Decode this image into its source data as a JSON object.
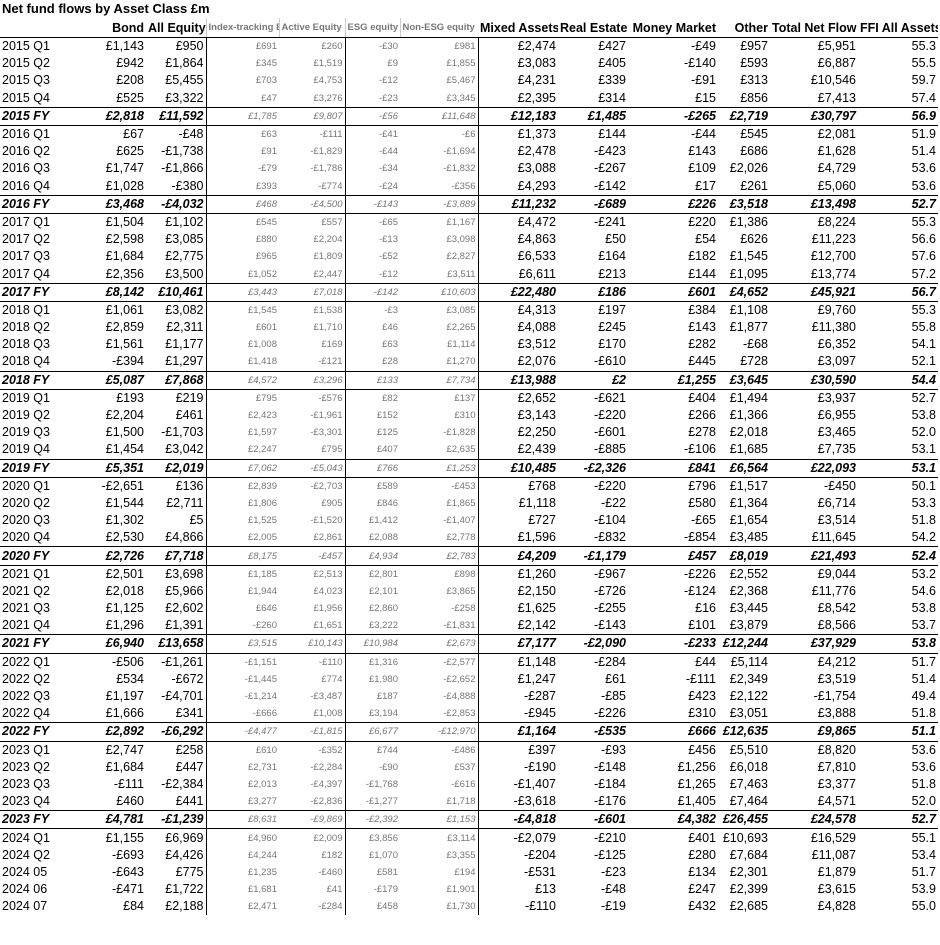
{
  "title": "Net fund flows by Asset Class £m",
  "columns": [
    "",
    "Bond",
    "All Equity",
    "Index-tracking Equity",
    "Active Equity",
    "ESG equity",
    "Non-ESG equity",
    "Mixed Assets",
    "Real Estate",
    "Money Market",
    "Other",
    "Total Net Flow",
    "FFI All Assets"
  ],
  "rows": [
    [
      "2015 Q1",
      "£1,143",
      "£950",
      "£691",
      "£260",
      "-£30",
      "£981",
      "£2,474",
      "£427",
      "-£49",
      "£957",
      "£5,951",
      "55.3"
    ],
    [
      "2015 Q2",
      "£942",
      "£1,864",
      "£345",
      "£1,519",
      "£9",
      "£1,855",
      "£3,083",
      "£405",
      "-£140",
      "£593",
      "£6,887",
      "55.5"
    ],
    [
      "2015 Q3",
      "£208",
      "£5,455",
      "£703",
      "£4,753",
      "-£12",
      "£5,467",
      "£4,231",
      "£339",
      "-£91",
      "£313",
      "£10,546",
      "59.7"
    ],
    [
      "2015 Q4",
      "£525",
      "£3,322",
      "£47",
      "£3,276",
      "-£23",
      "£3,345",
      "£2,395",
      "£314",
      "£15",
      "£856",
      "£7,413",
      "57.4"
    ],
    [
      "2015 FY",
      "£2,818",
      "£11,592",
      "£1,785",
      "£9,807",
      "-£56",
      "£11,648",
      "£12,183",
      "£1,485",
      "-£265",
      "£2,719",
      "£30,797",
      "56.9"
    ],
    [
      "2016 Q1",
      "£67",
      "-£48",
      "£63",
      "-£111",
      "-£41",
      "-£6",
      "£1,373",
      "£144",
      "-£44",
      "£545",
      "£2,081",
      "51.9"
    ],
    [
      "2016 Q2",
      "£625",
      "-£1,738",
      "£91",
      "-£1,829",
      "-£44",
      "-£1,694",
      "£2,478",
      "-£423",
      "£143",
      "£686",
      "£1,628",
      "51.4"
    ],
    [
      "2016 Q3",
      "£1,747",
      "-£1,866",
      "-£79",
      "-£1,786",
      "-£34",
      "-£1,832",
      "£3,088",
      "-£267",
      "£109",
      "£2,026",
      "£4,729",
      "53.6"
    ],
    [
      "2016 Q4",
      "£1,028",
      "-£380",
      "£393",
      "-£774",
      "-£24",
      "-£356",
      "£4,293",
      "-£142",
      "£17",
      "£261",
      "£5,060",
      "53.6"
    ],
    [
      "2016 FY",
      "£3,468",
      "-£4,032",
      "£468",
      "-£4,500",
      "-£143",
      "-£3,889",
      "£11,232",
      "-£689",
      "£226",
      "£3,518",
      "£13,498",
      "52.7"
    ],
    [
      "2017 Q1",
      "£1,504",
      "£1,102",
      "£545",
      "£557",
      "-£65",
      "£1,167",
      "£4,472",
      "-£241",
      "£220",
      "£1,386",
      "£8,224",
      "55.3"
    ],
    [
      "2017 Q2",
      "£2,598",
      "£3,085",
      "£880",
      "£2,204",
      "-£13",
      "£3,098",
      "£4,863",
      "£50",
      "£54",
      "£626",
      "£11,223",
      "56.6"
    ],
    [
      "2017 Q3",
      "£1,684",
      "£2,775",
      "£965",
      "£1,809",
      "-£52",
      "£2,827",
      "£6,533",
      "£164",
      "£182",
      "£1,545",
      "£12,700",
      "57.6"
    ],
    [
      "2017 Q4",
      "£2,356",
      "£3,500",
      "£1,052",
      "£2,447",
      "-£12",
      "£3,511",
      "£6,611",
      "£213",
      "£144",
      "£1,095",
      "£13,774",
      "57.2"
    ],
    [
      "2017 FY",
      "£8,142",
      "£10,461",
      "£3,443",
      "£7,018",
      "-£142",
      "£10,603",
      "£22,480",
      "£186",
      "£601",
      "£4,652",
      "£45,921",
      "56.7"
    ],
    [
      "2018 Q1",
      "£1,061",
      "£3,082",
      "£1,545",
      "£1,538",
      "-£3",
      "£3,085",
      "£4,313",
      "£197",
      "£384",
      "£1,108",
      "£9,760",
      "55.3"
    ],
    [
      "2018 Q2",
      "£2,859",
      "£2,311",
      "£601",
      "£1,710",
      "£46",
      "£2,265",
      "£4,088",
      "£245",
      "£143",
      "£1,877",
      "£11,380",
      "55.8"
    ],
    [
      "2018 Q3",
      "£1,561",
      "£1,177",
      "£1,008",
      "£169",
      "£63",
      "£1,114",
      "£3,512",
      "£170",
      "£282",
      "-£68",
      "£6,352",
      "54.1"
    ],
    [
      "2018 Q4",
      "-£394",
      "£1,297",
      "£1,418",
      "-£121",
      "£28",
      "£1,270",
      "£2,076",
      "-£610",
      "£445",
      "£728",
      "£3,097",
      "52.1"
    ],
    [
      "2018 FY",
      "£5,087",
      "£7,868",
      "£4,572",
      "£3,296",
      "£133",
      "£7,734",
      "£13,988",
      "£2",
      "£1,255",
      "£3,645",
      "£30,590",
      "54.4"
    ],
    [
      "2019 Q1",
      "£193",
      "£219",
      "£795",
      "-£576",
      "£82",
      "£137",
      "£2,652",
      "-£621",
      "£404",
      "£1,494",
      "£3,937",
      "52.7"
    ],
    [
      "2019 Q2",
      "£2,204",
      "£461",
      "£2,423",
      "-£1,961",
      "£152",
      "£310",
      "£3,143",
      "-£220",
      "£266",
      "£1,366",
      "£6,955",
      "53.8"
    ],
    [
      "2019 Q3",
      "£1,500",
      "-£1,703",
      "£1,597",
      "-£3,301",
      "£125",
      "-£1,828",
      "£2,250",
      "-£601",
      "£278",
      "£2,018",
      "£3,465",
      "52.0"
    ],
    [
      "2019 Q4",
      "£1,454",
      "£3,042",
      "£2,247",
      "£795",
      "£407",
      "£2,635",
      "£2,439",
      "-£885",
      "-£106",
      "£1,685",
      "£7,735",
      "53.1"
    ],
    [
      "2019 FY",
      "£5,351",
      "£2,019",
      "£7,062",
      "-£5,043",
      "£766",
      "£1,253",
      "£10,485",
      "-£2,326",
      "£841",
      "£6,564",
      "£22,093",
      "53.1"
    ],
    [
      "2020 Q1",
      "-£2,651",
      "£136",
      "£2,839",
      "-£2,703",
      "£589",
      "-£453",
      "£768",
      "-£220",
      "£796",
      "£1,517",
      "-£450",
      "50.1"
    ],
    [
      "2020 Q2",
      "£1,544",
      "£2,711",
      "£1,806",
      "£905",
      "£846",
      "£1,865",
      "£1,118",
      "-£22",
      "£580",
      "£1,364",
      "£6,714",
      "53.3"
    ],
    [
      "2020 Q3",
      "£1,302",
      "£5",
      "£1,525",
      "-£1,520",
      "£1,412",
      "-£1,407",
      "£727",
      "-£104",
      "-£65",
      "£1,654",
      "£3,514",
      "51.8"
    ],
    [
      "2020 Q4",
      "£2,530",
      "£4,866",
      "£2,005",
      "£2,861",
      "£2,088",
      "£2,778",
      "£1,596",
      "-£832",
      "-£854",
      "£3,485",
      "£11,645",
      "54.2"
    ],
    [
      "2020 FY",
      "£2,726",
      "£7,718",
      "£8,175",
      "-£457",
      "£4,934",
      "£2,783",
      "£4,209",
      "-£1,179",
      "£457",
      "£8,019",
      "£21,493",
      "52.4"
    ],
    [
      "2021 Q1",
      "£2,501",
      "£3,698",
      "£1,185",
      "£2,513",
      "£2,801",
      "£898",
      "£1,260",
      "-£967",
      "-£226",
      "£2,552",
      "£9,044",
      "53.2"
    ],
    [
      "2021 Q2",
      "£2,018",
      "£5,966",
      "£1,944",
      "£4,023",
      "£2,101",
      "£3,865",
      "£2,150",
      "-£726",
      "-£124",
      "£2,368",
      "£11,776",
      "54.6"
    ],
    [
      "2021 Q3",
      "£1,125",
      "£2,602",
      "£646",
      "£1,956",
      "£2,860",
      "-£258",
      "£1,625",
      "-£255",
      "£16",
      "£3,445",
      "£8,542",
      "53.8"
    ],
    [
      "2021 Q4",
      "£1,296",
      "£1,391",
      "-£260",
      "£1,651",
      "£3,222",
      "-£1,831",
      "£2,142",
      "-£143",
      "£101",
      "£3,879",
      "£8,566",
      "53.7"
    ],
    [
      "2021 FY",
      "£6,940",
      "£13,658",
      "£3,515",
      "£10,143",
      "£10,984",
      "£2,673",
      "£7,177",
      "-£2,090",
      "-£233",
      "£12,244",
      "£37,929",
      "53.8"
    ],
    [
      "2022 Q1",
      "-£506",
      "-£1,261",
      "-£1,151",
      "-£110",
      "£1,316",
      "-£2,577",
      "£1,148",
      "-£284",
      "£44",
      "£5,114",
      "£4,212",
      "51.7"
    ],
    [
      "2022 Q2",
      "£534",
      "-£672",
      "-£1,445",
      "£774",
      "£1,980",
      "-£2,652",
      "£1,247",
      "£61",
      "-£111",
      "£2,349",
      "£3,519",
      "51.4"
    ],
    [
      "2022 Q3",
      "£1,197",
      "-£4,701",
      "-£1,214",
      "-£3,487",
      "£187",
      "-£4,888",
      "-£287",
      "-£85",
      "£423",
      "£2,122",
      "-£1,754",
      "49.4"
    ],
    [
      "2022 Q4",
      "£1,666",
      "£341",
      "-£666",
      "£1,008",
      "£3,194",
      "-£2,853",
      "-£945",
      "-£226",
      "£310",
      "£3,051",
      "£3,888",
      "51.8"
    ],
    [
      "2022 FY",
      "£2,892",
      "-£6,292",
      "-£4,477",
      "-£1,815",
      "£6,677",
      "-£12,970",
      "£1,164",
      "-£535",
      "£666",
      "£12,635",
      "£9,865",
      "51.1"
    ],
    [
      "2023 Q1",
      "£2,747",
      "£258",
      "£610",
      "-£352",
      "£744",
      "-£486",
      "£397",
      "-£93",
      "£456",
      "£5,510",
      "£8,820",
      "53.6"
    ],
    [
      "2023 Q2",
      "£1,684",
      "£447",
      "£2,731",
      "-£2,284",
      "-£90",
      "£537",
      "-£190",
      "-£148",
      "£1,256",
      "£6,018",
      "£7,810",
      "53.6"
    ],
    [
      "2023 Q3",
      "-£111",
      "-£2,384",
      "£2,013",
      "-£4,397",
      "-£1,768",
      "-£616",
      "-£1,407",
      "-£184",
      "£1,265",
      "£7,463",
      "£3,377",
      "51.8"
    ],
    [
      "2023 Q4",
      "£460",
      "£441",
      "£3,277",
      "-£2,836",
      "-£1,277",
      "£1,718",
      "-£3,618",
      "-£176",
      "£1,405",
      "£7,464",
      "£4,571",
      "52.0"
    ],
    [
      "2023 FY",
      "£4,781",
      "-£1,239",
      "£8,631",
      "-£9,869",
      "-£2,392",
      "£1,153",
      "-£4,818",
      "-£601",
      "£4,382",
      "£26,455",
      "£24,578",
      "52.7"
    ],
    [
      "2024 Q1",
      "£1,155",
      "£6,969",
      "£4,960",
      "£2,009",
      "£3,856",
      "£3,114",
      "-£2,079",
      "-£210",
      "£401",
      "£10,693",
      "£16,529",
      "55.1"
    ],
    [
      "2024 Q2",
      "-£693",
      "£4,426",
      "£4,244",
      "£182",
      "£1,070",
      "£3,355",
      "-£204",
      "-£125",
      "£280",
      "£7,684",
      "£11,087",
      "53.4"
    ],
    [
      "2024 05",
      "-£643",
      "£775",
      "£1,235",
      "-£460",
      "£581",
      "£194",
      "-£531",
      "-£23",
      "£134",
      "£2,301",
      "£1,879",
      "51.7"
    ],
    [
      "2024 06",
      "-£471",
      "£1,722",
      "£1,681",
      "£41",
      "-£179",
      "£1,901",
      "£13",
      "-£48",
      "£247",
      "£2,399",
      "£3,615",
      "53.9"
    ],
    [
      "2024 07",
      "£84",
      "£2,188",
      "£2,471",
      "-£284",
      "£458",
      "£1,730",
      "-£110",
      "-£19",
      "£432",
      "£2,685",
      "£4,828",
      "55.0"
    ]
  ]
}
